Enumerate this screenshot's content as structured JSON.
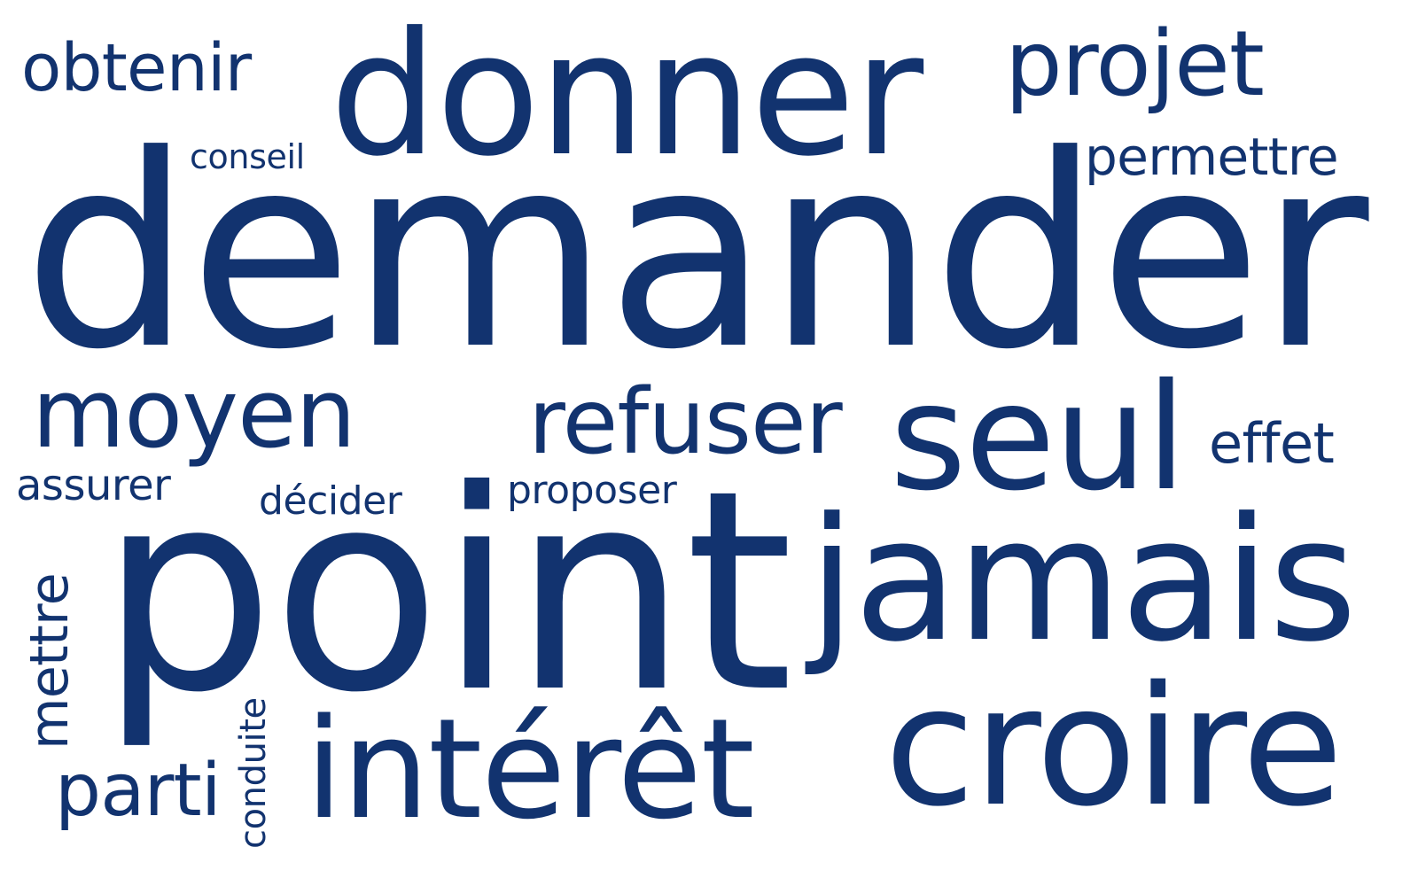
{
  "word_color": "#12336f",
  "background": "#ffffff",
  "words": {
    "demander": "demander",
    "point": "point",
    "donner": "donner",
    "jamais": "jamais",
    "croire": "croire",
    "seul": "seul",
    "interet": "intérêt",
    "projet": "projet",
    "refuser": "refuser",
    "moyen": "moyen",
    "obtenir": "obtenir",
    "permettre": "permettre",
    "mettre": "mettre",
    "parti": "parti",
    "effet": "effet",
    "assurer": "assurer",
    "proposer": "proposer",
    "decider": "décider",
    "conseil": "conseil",
    "conduite": "conduite"
  }
}
